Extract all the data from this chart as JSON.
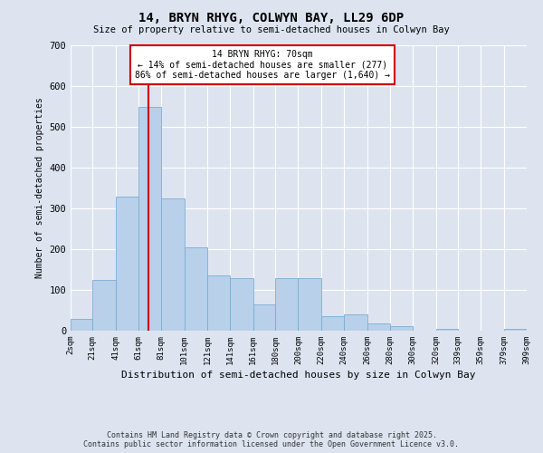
{
  "title": "14, BRYN RHYG, COLWYN BAY, LL29 6DP",
  "subtitle": "Size of property relative to semi-detached houses in Colwyn Bay",
  "xlabel": "Distribution of semi-detached houses by size in Colwyn Bay",
  "ylabel": "Number of semi-detached properties",
  "annotation_line1": "14 BRYN RHYG: 70sqm",
  "annotation_line2": "← 14% of semi-detached houses are smaller (277)",
  "annotation_line3": "86% of semi-detached houses are larger (1,640) →",
  "bins": [
    2,
    21,
    41,
    61,
    81,
    101,
    121,
    141,
    161,
    180,
    200,
    220,
    240,
    260,
    280,
    300,
    320,
    339,
    359,
    379,
    399
  ],
  "bin_labels": [
    "2sqm",
    "21sqm",
    "41sqm",
    "61sqm",
    "81sqm",
    "101sqm",
    "121sqm",
    "141sqm",
    "161sqm",
    "180sqm",
    "200sqm",
    "220sqm",
    "240sqm",
    "260sqm",
    "280sqm",
    "300sqm",
    "320sqm",
    "339sqm",
    "359sqm",
    "379sqm",
    "399sqm"
  ],
  "counts": [
    28,
    125,
    330,
    550,
    325,
    205,
    135,
    130,
    65,
    130,
    130,
    35,
    40,
    18,
    12,
    0,
    5,
    0,
    0,
    5
  ],
  "bar_color": "#b8d0ea",
  "bar_edge_color": "#7aadd4",
  "vline_color": "#cc0000",
  "vline_x": 70,
  "box_color": "#cc0000",
  "background_color": "#dde4f0",
  "grid_color": "#ffffff",
  "footer_line1": "Contains HM Land Registry data © Crown copyright and database right 2025.",
  "footer_line2": "Contains public sector information licensed under the Open Government Licence v3.0.",
  "ylim": [
    0,
    700
  ],
  "yticks": [
    0,
    100,
    200,
    300,
    400,
    500,
    600,
    700
  ]
}
